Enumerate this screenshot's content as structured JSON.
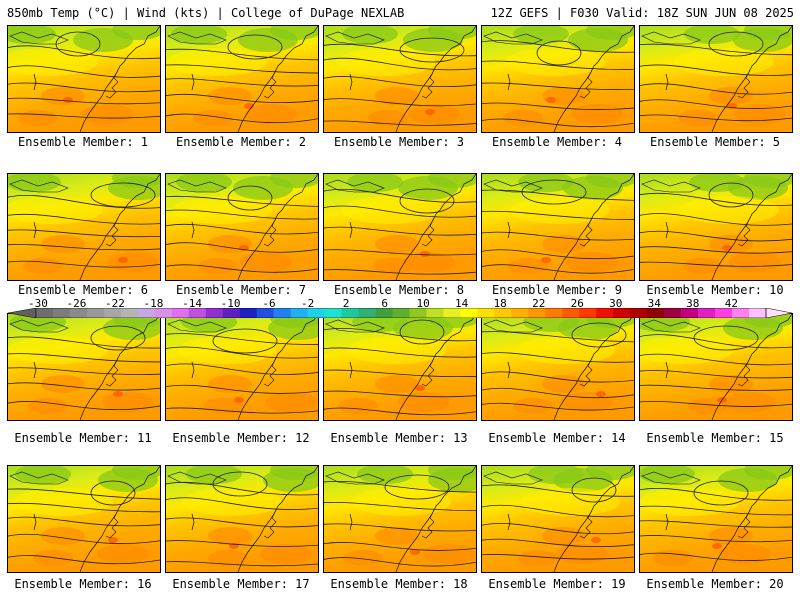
{
  "header": {
    "left": "850mb Temp (°C) | Wind (kts) | College of DuPage NEXLAB",
    "right": "12Z GEFS | F030 Valid: 18Z SUN JUN 08 2025"
  },
  "panels": [
    {
      "label": "Ensemble Member: 1"
    },
    {
      "label": "Ensemble Member: 2"
    },
    {
      "label": "Ensemble Member: 3"
    },
    {
      "label": "Ensemble Member: 4"
    },
    {
      "label": "Ensemble Member: 5"
    },
    {
      "label": "Ensemble Member: 6"
    },
    {
      "label": "Ensemble Member: 7"
    },
    {
      "label": "Ensemble Member: 8"
    },
    {
      "label": "Ensemble Member: 9"
    },
    {
      "label": "Ensemble Member: 10"
    },
    {
      "label": "Ensemble Member: 11"
    },
    {
      "label": "Ensemble Member: 12"
    },
    {
      "label": "Ensemble Member: 13"
    },
    {
      "label": "Ensemble Member: 14"
    },
    {
      "label": "Ensemble Member: 15"
    },
    {
      "label": "Ensemble Member: 16"
    },
    {
      "label": "Ensemble Member: 17"
    },
    {
      "label": "Ensemble Member: 18"
    },
    {
      "label": "Ensemble Member: 19"
    },
    {
      "label": "Ensemble Member: 20"
    }
  ],
  "colorbar": {
    "ticks": [
      "-30",
      "-26",
      "-22",
      "-18",
      "-14",
      "-10",
      "-6",
      "-2",
      "2",
      "6",
      "10",
      "14",
      "18",
      "22",
      "26",
      "30",
      "34",
      "38",
      "42"
    ],
    "colors": [
      "#6e6e6e",
      "#7c7c7c",
      "#8a8a8a",
      "#989898",
      "#a6a6a6",
      "#b4b4b4",
      "#c4a8e0",
      "#d890e8",
      "#e070f0",
      "#c050e0",
      "#9030d0",
      "#6020c0",
      "#2020c0",
      "#2050e0",
      "#2080f0",
      "#20b0f0",
      "#20d0e8",
      "#20e0d0",
      "#20c8a0",
      "#30b070",
      "#40a040",
      "#60b030",
      "#90c820",
      "#c0e020",
      "#e8f020",
      "#ffff00",
      "#ffe000",
      "#ffc800",
      "#ffb000",
      "#ff9800",
      "#ff7a00",
      "#ff5a00",
      "#ff3800",
      "#f01000",
      "#d00000",
      "#b00000",
      "#900000",
      "#a00040",
      "#c00080",
      "#e020c0",
      "#ff40e0",
      "#ff80f0",
      "#ffc0ff"
    ]
  }
}
